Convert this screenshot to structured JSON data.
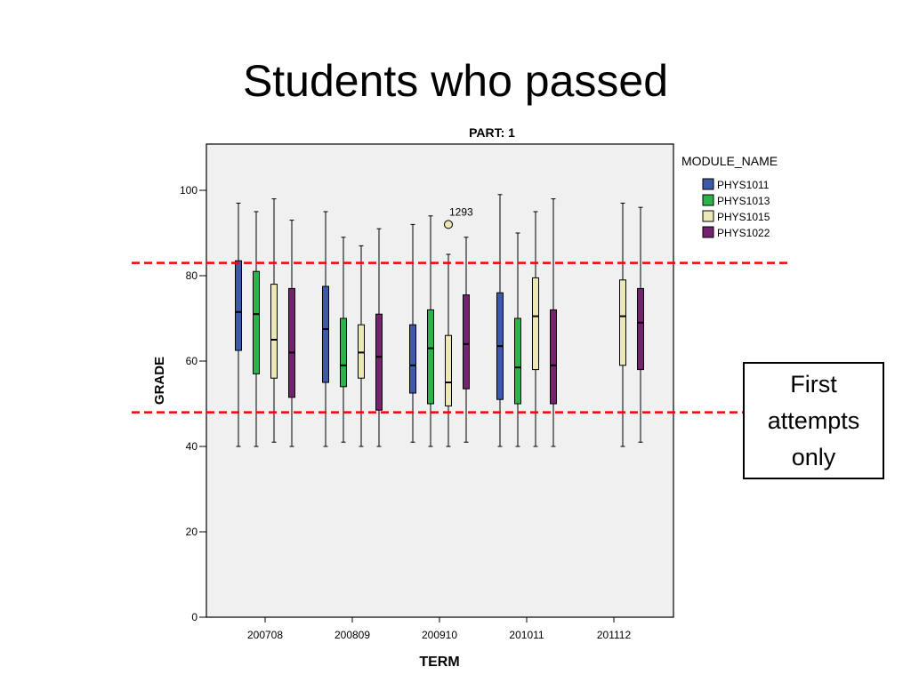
{
  "slide": {
    "title": "Students who passed",
    "callout": "First attempts only"
  },
  "colors": {
    "PHYS1011": "#3c5aa8",
    "PHYS1013": "#2bb34a",
    "PHYS1015": "#ece9b5",
    "PHYS1022": "#74236f",
    "reference_line": "#ff0000",
    "plot_background": "#f0f0f0"
  },
  "chart_data": {
    "type": "boxplot",
    "panel_label": "PART: 1",
    "xlabel": "TERM",
    "ylabel": "GRADE",
    "legend_title": "MODULE_NAME",
    "legend_position": "top-right",
    "ylim": [
      0,
      111
    ],
    "yticks": [
      0,
      20,
      40,
      60,
      80,
      100
    ],
    "categories": [
      "200708",
      "200809",
      "200910",
      "201011",
      "201112"
    ],
    "reference_lines": [
      83,
      48
    ],
    "series": [
      {
        "name": "PHYS1011",
        "boxes": [
          {
            "term": "200708",
            "min": 40,
            "q1": 62.5,
            "median": 71.5,
            "q3": 83.5,
            "max": 97
          },
          {
            "term": "200809",
            "min": 40,
            "q1": 55,
            "median": 67.5,
            "q3": 77.5,
            "max": 95
          },
          {
            "term": "200910",
            "min": 41,
            "q1": 52.5,
            "median": 59,
            "q3": 68.5,
            "max": 92
          },
          {
            "term": "201011",
            "min": 40,
            "q1": 51,
            "median": 63.5,
            "q3": 76,
            "max": 99
          }
        ]
      },
      {
        "name": "PHYS1013",
        "boxes": [
          {
            "term": "200708",
            "min": 40,
            "q1": 57,
            "median": 71,
            "q3": 81,
            "max": 95
          },
          {
            "term": "200809",
            "min": 41,
            "q1": 54,
            "median": 59,
            "q3": 70,
            "max": 89
          },
          {
            "term": "200910",
            "min": 40,
            "q1": 50,
            "median": 63,
            "q3": 72,
            "max": 94
          },
          {
            "term": "201011",
            "min": 40,
            "q1": 50,
            "median": 58.5,
            "q3": 70,
            "max": 90
          }
        ]
      },
      {
        "name": "PHYS1015",
        "boxes": [
          {
            "term": "200708",
            "min": 41,
            "q1": 56,
            "median": 65,
            "q3": 78,
            "max": 98
          },
          {
            "term": "200809",
            "min": 40,
            "q1": 56,
            "median": 62,
            "q3": 68.5,
            "max": 87
          },
          {
            "term": "200910",
            "min": 40,
            "q1": 49.5,
            "median": 55,
            "q3": 66,
            "max": 85,
            "outliers": [
              {
                "value": 92,
                "label": "1293"
              }
            ]
          },
          {
            "term": "201011",
            "min": 40,
            "q1": 58,
            "median": 70.5,
            "q3": 79.5,
            "max": 95
          },
          {
            "term": "201112",
            "min": 40,
            "q1": 59,
            "median": 70.5,
            "q3": 79,
            "max": 97
          }
        ]
      },
      {
        "name": "PHYS1022",
        "boxes": [
          {
            "term": "200708",
            "min": 40,
            "q1": 51.5,
            "median": 62,
            "q3": 77,
            "max": 93
          },
          {
            "term": "200809",
            "min": 40,
            "q1": 48.5,
            "median": 61,
            "q3": 71,
            "max": 91
          },
          {
            "term": "200910",
            "min": 41,
            "q1": 53.5,
            "median": 64,
            "q3": 75.5,
            "max": 89
          },
          {
            "term": "201011",
            "min": 40,
            "q1": 50,
            "median": 59,
            "q3": 72,
            "max": 98
          },
          {
            "term": "201112",
            "min": 41,
            "q1": 58,
            "median": 69,
            "q3": 77,
            "max": 96
          }
        ]
      }
    ]
  }
}
